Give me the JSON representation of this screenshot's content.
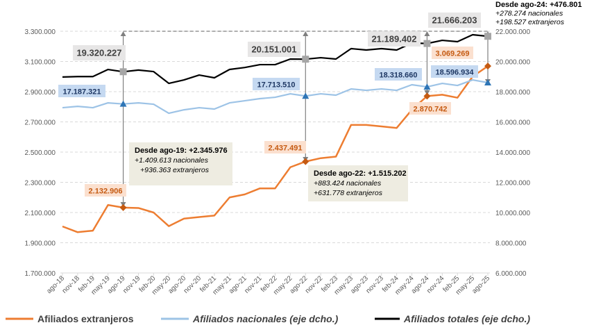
{
  "chart_data": {
    "type": "line",
    "x": [
      "ago-18",
      "nov-18",
      "feb-19",
      "may-19",
      "ago-19",
      "nov-19",
      "feb-20",
      "may-20",
      "ago-20",
      "nov-20",
      "feb-21",
      "may-21",
      "ago-21",
      "nov-21",
      "feb-22",
      "may-22",
      "ago-22",
      "nov-22",
      "feb-23",
      "may-23",
      "ago-23",
      "nov-23",
      "feb-24",
      "may-24",
      "ago-24",
      "nov-24",
      "feb-25",
      "may-25",
      "ago-25"
    ],
    "left_axis": {
      "ylim": [
        1700000,
        3300000
      ],
      "ticks": [
        "1.700.000",
        "1.900.000",
        "2.100.000",
        "2.300.000",
        "2.500.000",
        "2.700.000",
        "2.900.000",
        "3.100.000",
        "3.300.000"
      ]
    },
    "right_axis": {
      "ylim": [
        6000000,
        22000000
      ],
      "ticks": [
        "6.000.000",
        "8.000.000",
        "10.000.000",
        "12.000.000",
        "14.000.000",
        "16.000.000",
        "18.000.000",
        "20.000.000",
        "22.000.000"
      ]
    },
    "grid": true,
    "legend_position": "bottom",
    "series": [
      {
        "name": "Afiliados extranjeros",
        "axis": "left",
        "color": "#ed7d31",
        "values": [
          2008000,
          1970000,
          1980000,
          2150000,
          2132906,
          2130000,
          2100000,
          2010000,
          2060000,
          2070000,
          2080000,
          2200000,
          2220000,
          2260000,
          2260000,
          2400000,
          2437491,
          2460000,
          2470000,
          2680000,
          2680000,
          2670000,
          2660000,
          2780000,
          2870742,
          2880000,
          2860000,
          3000000,
          3069269
        ]
      },
      {
        "name": "Afiliados nacionales (eje dcho.)",
        "axis": "right",
        "color": "#9dc3e6",
        "values": [
          16940000,
          17030000,
          16940000,
          17260000,
          17187321,
          17260000,
          17170000,
          16570000,
          16800000,
          16940000,
          16850000,
          17260000,
          17400000,
          17540000,
          17630000,
          17860000,
          17713510,
          17860000,
          17770000,
          18180000,
          18090000,
          18180000,
          18090000,
          18460000,
          18318660,
          18550000,
          18410000,
          18780000,
          18596934
        ]
      },
      {
        "name": "Afiliados totales (eje dcho.)",
        "axis": "right",
        "color": "#000000",
        "values": [
          18970000,
          19000000,
          19000000,
          19470000,
          19320227,
          19430000,
          19330000,
          18550000,
          18780000,
          19100000,
          18920000,
          19470000,
          19600000,
          19790000,
          19790000,
          20160000,
          20151001,
          20250000,
          20160000,
          20850000,
          20760000,
          20850000,
          20760000,
          21220000,
          21189402,
          21400000,
          21310000,
          21770000,
          21666203
        ]
      }
    ],
    "data_labels": {
      "totales": [
        "19.320.227",
        "20.151.001",
        "21.189.402",
        "21.666.203"
      ],
      "nacionales": [
        "17.187.321",
        "17.713.510",
        "18.318.660",
        "18.596.934"
      ],
      "extranjeros": [
        "2.132.906",
        "2.437.491",
        "2.870.742",
        "3.069.269"
      ]
    },
    "annotations": [
      {
        "title": "Desde ago-19: +2.345.976",
        "line1": "+1.409.613 nacionales",
        "line2": "+936.363 extranjeros"
      },
      {
        "title": "Desde ago-22: +1.515.202",
        "line1": "+883.424 nacionales",
        "line2": "+631.778 extranjeros"
      },
      {
        "title": "Desde ago-24: +476.801",
        "line1": "+278.274 nacionales",
        "line2": "+198.527 extranjeros"
      }
    ]
  }
}
